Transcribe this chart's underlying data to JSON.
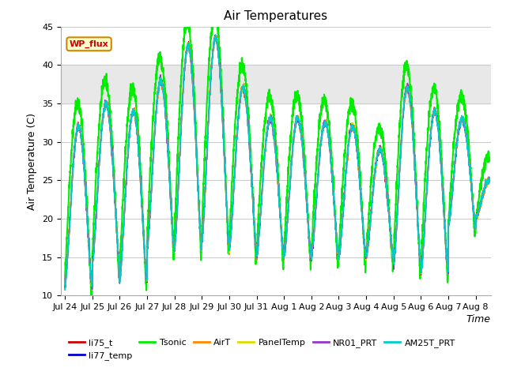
{
  "title": "Air Temperatures",
  "xlabel": "Time",
  "ylabel": "Air Temperature (C)",
  "ylim": [
    10,
    45
  ],
  "x_tick_labels": [
    "Jul 24",
    "Jul 25",
    "Jul 26",
    "Jul 27",
    "Jul 28",
    "Jul 29",
    "Jul 30",
    "Jul 31",
    "Aug 1",
    "Aug 2",
    "Aug 3",
    "Aug 4",
    "Aug 5",
    "Aug 6",
    "Aug 7",
    "Aug 8"
  ],
  "x_tick_positions": [
    0,
    1,
    2,
    3,
    4,
    5,
    6,
    7,
    8,
    9,
    10,
    11,
    12,
    13,
    14,
    15
  ],
  "yticks": [
    10,
    15,
    20,
    25,
    30,
    35,
    40,
    45
  ],
  "series_order": [
    "AM25T_PRT",
    "li75_t",
    "li77_temp",
    "AirT",
    "PanelTemp",
    "NR01_PRT",
    "Tsonic"
  ],
  "series": {
    "li75_t": {
      "color": "#cc0000",
      "lw": 1.0
    },
    "li77_temp": {
      "color": "#0000cc",
      "lw": 1.0
    },
    "Tsonic": {
      "color": "#00ee00",
      "lw": 1.5
    },
    "AirT": {
      "color": "#ff8800",
      "lw": 1.0
    },
    "PanelTemp": {
      "color": "#dddd00",
      "lw": 1.0
    },
    "NR01_PRT": {
      "color": "#9933cc",
      "lw": 1.0
    },
    "AM25T_PRT": {
      "color": "#00cccc",
      "lw": 1.2
    }
  },
  "shaded_band": [
    35,
    40
  ],
  "shaded_band_color": "#e8e8e8",
  "wp_flux_box": {
    "text": "WP_flux",
    "facecolor": "#ffffcc",
    "edgecolor": "#cc8800",
    "text_color": "#cc0000"
  },
  "bg_color": "#ffffff",
  "grid_color": "#cccccc",
  "title_fontsize": 11,
  "label_fontsize": 9,
  "tick_fontsize": 8,
  "legend_order": [
    "li75_t",
    "li77_temp",
    "Tsonic",
    "AirT",
    "PanelTemp",
    "NR01_PRT",
    "AM25T_PRT"
  ],
  "day_peaks_base": [
    32,
    35,
    34,
    38,
    42.5,
    43.5,
    37,
    33,
    33,
    32.5,
    32,
    29,
    37,
    34,
    33,
    25
  ],
  "day_mins_base": [
    11,
    14,
    12,
    16,
    16,
    17,
    16,
    15,
    15,
    15,
    15,
    15,
    14,
    13,
    19,
    20
  ],
  "tsonic_extra_peak": 3.0,
  "tsonic_extra_min": -1.5
}
